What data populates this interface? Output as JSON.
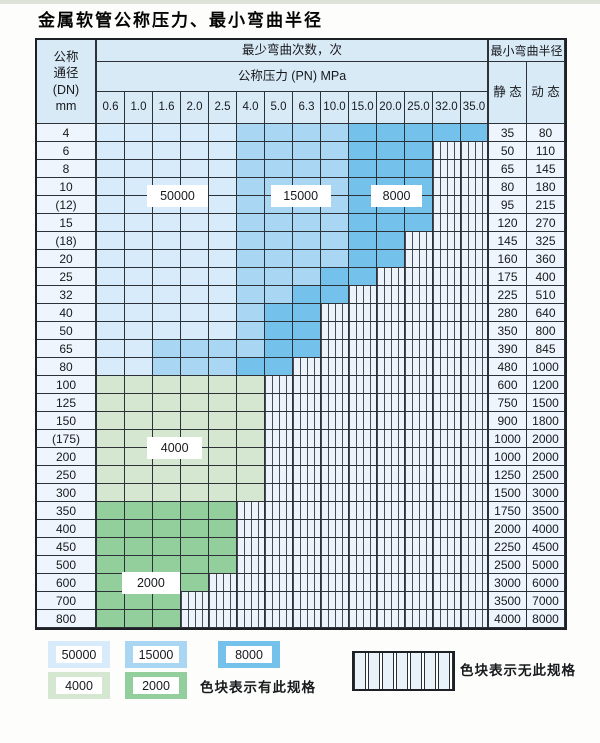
{
  "title": "金属软管公称压力、最小弯曲半径",
  "table": {
    "dn_header_lines": [
      "公称",
      "通径",
      "(DN)",
      "mm"
    ],
    "bend_times_header": "最少弯曲次数，次",
    "pressure_header": "公称压力 (PN) MPa",
    "radius_header": "最小弯曲半径",
    "static_header": "静 态",
    "dynamic_header": "动 态",
    "pressure_columns": [
      "0.6",
      "1.0",
      "1.6",
      "2.0",
      "2.5",
      "4.0",
      "5.0",
      "6.3",
      "10.0",
      "15.0",
      "20.0",
      "25.0",
      "32.0",
      "35.0"
    ],
    "rows": [
      {
        "dn": "4",
        "static": "35",
        "dynamic": "80",
        "zones": [
          {
            "z": "z50000",
            "n": 5
          },
          {
            "z": "z15000",
            "n": 4
          },
          {
            "z": "z8000",
            "n": 5
          }
        ]
      },
      {
        "dn": "6",
        "static": "50",
        "dynamic": "110",
        "zones": [
          {
            "z": "z50000",
            "n": 5
          },
          {
            "z": "z15000",
            "n": 4
          },
          {
            "z": "z8000",
            "n": 3
          }
        ]
      },
      {
        "dn": "8",
        "static": "65",
        "dynamic": "145",
        "zones": [
          {
            "z": "z50000",
            "n": 5
          },
          {
            "z": "z15000",
            "n": 4
          },
          {
            "z": "z8000",
            "n": 3
          }
        ]
      },
      {
        "dn": "10",
        "static": "80",
        "dynamic": "180",
        "zones": [
          {
            "z": "z50000",
            "n": 5
          },
          {
            "z": "z15000",
            "n": 4
          },
          {
            "z": "z8000",
            "n": 3
          }
        ]
      },
      {
        "dn": "(12)",
        "static": "95",
        "dynamic": "215",
        "zones": [
          {
            "z": "z50000",
            "n": 5
          },
          {
            "z": "z15000",
            "n": 4
          },
          {
            "z": "z8000",
            "n": 3
          }
        ]
      },
      {
        "dn": "15",
        "static": "120",
        "dynamic": "270",
        "zones": [
          {
            "z": "z50000",
            "n": 5
          },
          {
            "z": "z15000",
            "n": 4
          },
          {
            "z": "z8000",
            "n": 3
          }
        ]
      },
      {
        "dn": "(18)",
        "static": "145",
        "dynamic": "325",
        "zones": [
          {
            "z": "z50000",
            "n": 5
          },
          {
            "z": "z15000",
            "n": 4
          },
          {
            "z": "z8000",
            "n": 2
          }
        ]
      },
      {
        "dn": "20",
        "static": "160",
        "dynamic": "360",
        "zones": [
          {
            "z": "z50000",
            "n": 5
          },
          {
            "z": "z15000",
            "n": 4
          },
          {
            "z": "z8000",
            "n": 2
          }
        ]
      },
      {
        "dn": "25",
        "static": "175",
        "dynamic": "400",
        "zones": [
          {
            "z": "z50000",
            "n": 5
          },
          {
            "z": "z15000",
            "n": 3
          },
          {
            "z": "z8000",
            "n": 2
          }
        ]
      },
      {
        "dn": "32",
        "static": "225",
        "dynamic": "510",
        "zones": [
          {
            "z": "z50000",
            "n": 5
          },
          {
            "z": "z15000",
            "n": 2
          },
          {
            "z": "z8000",
            "n": 2
          }
        ]
      },
      {
        "dn": "40",
        "static": "280",
        "dynamic": "640",
        "zones": [
          {
            "z": "z50000",
            "n": 5
          },
          {
            "z": "z15000",
            "n": 1
          },
          {
            "z": "z8000",
            "n": 2
          }
        ]
      },
      {
        "dn": "50",
        "static": "350",
        "dynamic": "800",
        "zones": [
          {
            "z": "z50000",
            "n": 5
          },
          {
            "z": "z15000",
            "n": 1
          },
          {
            "z": "z8000",
            "n": 2
          }
        ]
      },
      {
        "dn": "65",
        "static": "390",
        "dynamic": "845",
        "zones": [
          {
            "z": "z50000",
            "n": 2
          },
          {
            "z": "z15000",
            "n": 4
          },
          {
            "z": "z8000",
            "n": 2
          }
        ]
      },
      {
        "dn": "80",
        "static": "480",
        "dynamic": "1000",
        "zones": [
          {
            "z": "z50000",
            "n": 2
          },
          {
            "z": "z15000",
            "n": 3
          },
          {
            "z": "z8000",
            "n": 2
          }
        ]
      },
      {
        "dn": "100",
        "static": "600",
        "dynamic": "1200",
        "zones": [
          {
            "z": "z4000",
            "n": 6
          }
        ]
      },
      {
        "dn": "125",
        "static": "750",
        "dynamic": "1500",
        "zones": [
          {
            "z": "z4000",
            "n": 6
          }
        ]
      },
      {
        "dn": "150",
        "static": "900",
        "dynamic": "1800",
        "zones": [
          {
            "z": "z4000",
            "n": 6
          }
        ]
      },
      {
        "dn": "(175)",
        "static": "1000",
        "dynamic": "2000",
        "zones": [
          {
            "z": "z4000",
            "n": 6
          }
        ]
      },
      {
        "dn": "200",
        "static": "1000",
        "dynamic": "2000",
        "zones": [
          {
            "z": "z4000",
            "n": 6
          }
        ]
      },
      {
        "dn": "250",
        "static": "1250",
        "dynamic": "2500",
        "zones": [
          {
            "z": "z4000",
            "n": 6
          }
        ]
      },
      {
        "dn": "300",
        "static": "1500",
        "dynamic": "3000",
        "zones": [
          {
            "z": "z4000",
            "n": 6
          }
        ]
      },
      {
        "dn": "350",
        "static": "1750",
        "dynamic": "3500",
        "zones": [
          {
            "z": "z2000",
            "n": 5
          }
        ]
      },
      {
        "dn": "400",
        "static": "2000",
        "dynamic": "4000",
        "zones": [
          {
            "z": "z2000",
            "n": 5
          }
        ]
      },
      {
        "dn": "450",
        "static": "2250",
        "dynamic": "4500",
        "zones": [
          {
            "z": "z2000",
            "n": 5
          }
        ]
      },
      {
        "dn": "500",
        "static": "2500",
        "dynamic": "5000",
        "zones": [
          {
            "z": "z2000",
            "n": 5
          }
        ]
      },
      {
        "dn": "600",
        "static": "3000",
        "dynamic": "6000",
        "zones": [
          {
            "z": "z2000",
            "n": 4
          }
        ]
      },
      {
        "dn": "700",
        "static": "3500",
        "dynamic": "7000",
        "zones": [
          {
            "z": "z2000",
            "n": 3
          }
        ]
      },
      {
        "dn": "800",
        "static": "4000",
        "dynamic": "8000",
        "zones": [
          {
            "z": "z2000",
            "n": 3
          }
        ]
      }
    ]
  },
  "region_labels": [
    {
      "text": "50000",
      "c0": 1.8,
      "c1": 3.95,
      "rc": 4.0
    },
    {
      "text": "15000",
      "c0": 6.2,
      "c1": 8.35,
      "rc": 4.0
    },
    {
      "text": "8000",
      "c0": 9.8,
      "c1": 11.6,
      "rc": 4.0
    },
    {
      "text": "4000",
      "c0": 1.8,
      "c1": 3.75,
      "rc": 18.0
    },
    {
      "text": "2000",
      "c0": 0.9,
      "c1": 2.95,
      "rc": 25.5
    }
  ],
  "legend": {
    "swatches": [
      {
        "label": "50000",
        "zone": "z50000"
      },
      {
        "label": "15000",
        "zone": "z15000"
      },
      {
        "label": "8000",
        "zone": "z8000"
      },
      {
        "label": "4000",
        "zone": "z4000"
      },
      {
        "label": "2000",
        "zone": "z2000"
      }
    ],
    "has_spec_text": "色块表示有此规格",
    "no_spec_text": "色块表示无此规格"
  },
  "colors": {
    "z50000": "#d7ebfa",
    "z15000": "#a9d6f3",
    "z8000": "#74c2ec",
    "z4000": "#d5e7d1",
    "z2000": "#93cf9d",
    "header": "#d9eaf7",
    "side": "#eef5fc"
  }
}
